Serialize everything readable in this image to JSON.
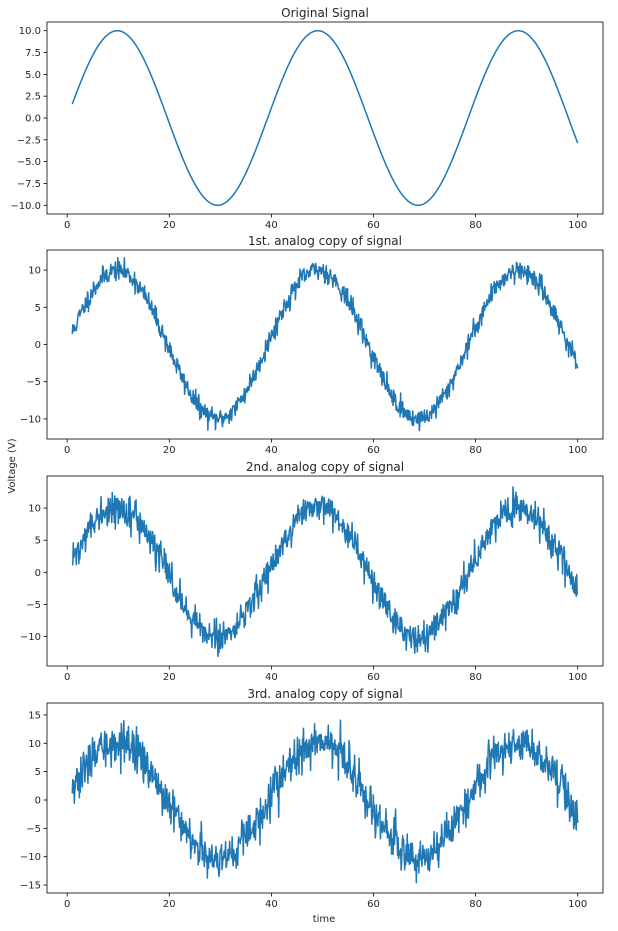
{
  "figure": {
    "ylabel": "Voltage (V)",
    "xlabel": "time",
    "line_color": "#1f77b4"
  },
  "chart_data": [
    {
      "type": "line",
      "title": "Original Signal",
      "xlabel": "",
      "ylabel": "",
      "x_range": [
        1,
        100
      ],
      "n_points": 1000,
      "signal": "10*sin(0.16*x)",
      "amplitude": 10,
      "omega": 0.16,
      "noise_std": 0,
      "xlim": [
        -3.95,
        104.95
      ],
      "ylim": [
        -11,
        11
      ],
      "xticks": [
        0,
        20,
        40,
        60,
        80,
        100
      ],
      "yticks": [
        -10,
        -7.5,
        -5,
        -2.5,
        0,
        2.5,
        5,
        7.5,
        10
      ],
      "ytick_labels": [
        "−10.0",
        "−7.5",
        "−5.0",
        "−2.5",
        "0.0",
        "2.5",
        "5.0",
        "7.5",
        "10.0"
      ]
    },
    {
      "type": "line",
      "title": "1st. analog copy of signal",
      "x_range": [
        1,
        100
      ],
      "n_points": 1000,
      "signal": "10*sin(0.16*x) + noise",
      "amplitude": 10,
      "omega": 0.16,
      "noise_std": 0.7,
      "seed": 11,
      "xlim": [
        -3.95,
        104.95
      ],
      "ylim": [
        -12.7,
        12.7
      ],
      "xticks": [
        0,
        20,
        40,
        60,
        80,
        100
      ],
      "yticks": [
        -10,
        -5,
        0,
        5,
        10
      ],
      "ytick_labels": [
        "−10",
        "−5",
        "0",
        "5",
        "10"
      ]
    },
    {
      "type": "line",
      "title": "2nd. analog copy of signal",
      "x_range": [
        1,
        100
      ],
      "n_points": 1000,
      "signal": "10*sin(0.16*x) + noise",
      "amplitude": 10,
      "omega": 0.16,
      "noise_std": 1.2,
      "seed": 22,
      "xlim": [
        -3.95,
        104.95
      ],
      "ylim": [
        -14.6,
        15
      ],
      "xticks": [
        0,
        20,
        40,
        60,
        80,
        100
      ],
      "yticks": [
        -10,
        -5,
        0,
        5,
        10
      ],
      "ytick_labels": [
        "−10",
        "−5",
        "0",
        "5",
        "10"
      ]
    },
    {
      "type": "line",
      "title": "3rd. analog copy of signal",
      "x_range": [
        1,
        100
      ],
      "n_points": 1000,
      "signal": "10*sin(0.16*x) + noise",
      "amplitude": 10,
      "omega": 0.16,
      "noise_std": 1.8,
      "seed": 33,
      "xlim": [
        -3.95,
        104.95
      ],
      "ylim": [
        -16.4,
        17.1
      ],
      "xticks": [
        0,
        20,
        40,
        60,
        80,
        100
      ],
      "yticks": [
        -15,
        -10,
        -5,
        0,
        5,
        10,
        15
      ],
      "ytick_labels": [
        "−15",
        "−10",
        "−5",
        "0",
        "5",
        "10",
        "15"
      ]
    }
  ]
}
